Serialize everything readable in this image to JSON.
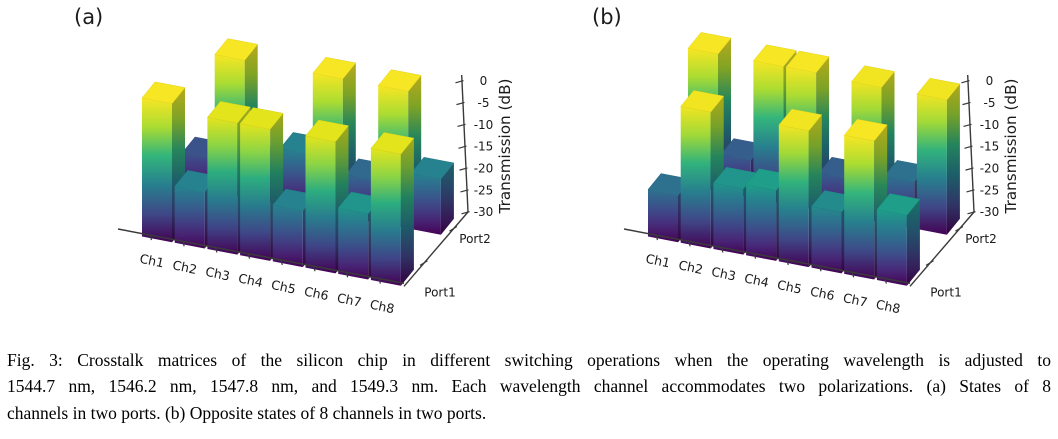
{
  "caption": {
    "lines": [
      "Fig. 3: Crosstalk matrices of the silicon chip in different switching operations when the operating wavelength is adjusted to",
      "1544.7 nm, 1546.2 nm, 1547.8 nm, and 1549.3 nm. Each wavelength channel accommodates two polarizations. (a) States of 8",
      "channels in two ports. (b) Opposite states of 8 channels in two ports."
    ]
  },
  "chart_data": [
    {
      "type": "bar",
      "subtype": "bar3d",
      "panel_label": "(a)",
      "description": "States of 8 channels in two ports",
      "categories": [
        "Ch1",
        "Ch2",
        "Ch3",
        "Ch4",
        "Ch5",
        "Ch6",
        "Ch7",
        "Ch8"
      ],
      "rows": [
        "Port1",
        "Port2"
      ],
      "series": [
        {
          "name": "Port1",
          "values": [
            -0.5,
            -18,
            -2,
            -2,
            -18,
            -2,
            -16,
            -2
          ]
        },
        {
          "name": "Port2",
          "values": [
            -23,
            -0.5,
            -22,
            -18,
            -0.5,
            -21,
            -0.5,
            -18
          ]
        }
      ],
      "zlabel": "Transmission (dB)",
      "zticks": [
        0,
        -5,
        -10,
        -15,
        -20,
        -25,
        -30
      ],
      "zlim": [
        -30,
        0
      ],
      "grid": false,
      "legend": false,
      "colormap": "viridis"
    },
    {
      "type": "bar",
      "subtype": "bar3d",
      "panel_label": "(b)",
      "description": "Opposite states of 8 channels in two ports",
      "categories": [
        "Ch1",
        "Ch2",
        "Ch3",
        "Ch4",
        "Ch5",
        "Ch6",
        "Ch7",
        "Ch8"
      ],
      "rows": [
        "Port1",
        "Port2"
      ],
      "series": [
        {
          "name": "Port1",
          "values": [
            -20,
            -1,
            -16,
            -15,
            -1,
            -17,
            -0.5,
            -15
          ]
        },
        {
          "name": "Port2",
          "values": [
            -0.5,
            -22,
            -0.5,
            -0.5,
            -22,
            -1,
            -20,
            -1
          ]
        }
      ],
      "zlabel": "Transmission (dB)",
      "zticks": [
        0,
        -5,
        -10,
        -15,
        -20,
        -25,
        -30
      ],
      "zlim": [
        -30,
        0
      ],
      "grid": false,
      "legend": false,
      "colormap": "viridis"
    }
  ],
  "colormap_stops": [
    [
      0.0,
      "#440154"
    ],
    [
      0.1,
      "#482878"
    ],
    [
      0.2,
      "#3e4a89"
    ],
    [
      0.3,
      "#31688e"
    ],
    [
      0.4,
      "#26828e"
    ],
    [
      0.5,
      "#1f9e89"
    ],
    [
      0.6,
      "#35b779"
    ],
    [
      0.7,
      "#6dcd59"
    ],
    [
      0.8,
      "#b4de2c"
    ],
    [
      0.9,
      "#d8e219"
    ],
    [
      1.0,
      "#fde725"
    ]
  ],
  "colors": {
    "axis": "#3a3a3a",
    "text": "#1a1a1a",
    "background": "#ffffff"
  }
}
